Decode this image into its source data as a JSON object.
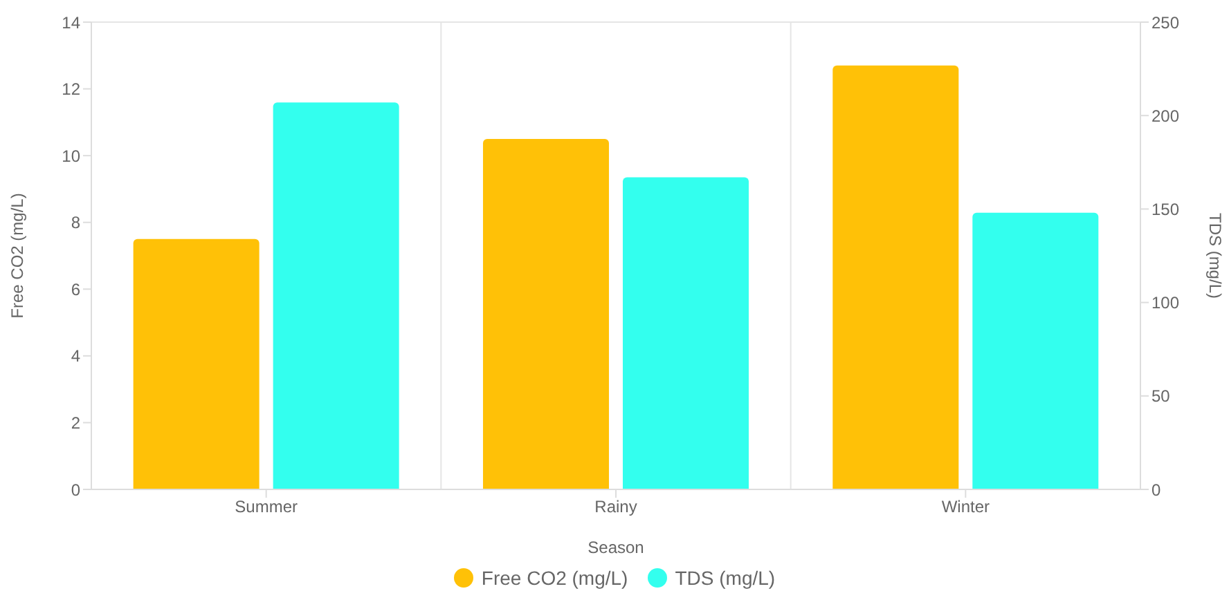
{
  "chart_data": {
    "type": "bar",
    "xlabel": "Season",
    "ylabel": "Free CO2 (mg/L)",
    "y2label": "TDS (mg/L)",
    "categories": [
      "Summer",
      "Rainy",
      "Winter"
    ],
    "series": [
      {
        "name": "Free CO2 (mg/L)",
        "color": "#ffc107",
        "values": [
          7.5,
          10.5,
          12.7
        ]
      },
      {
        "name": "TDS (mg/L)",
        "color": "#33ffee",
        "values": [
          207,
          167,
          148
        ],
        "axis": "y2"
      }
    ],
    "ylim": [
      0,
      14
    ],
    "yticks": [
      0,
      2,
      4,
      6,
      8,
      10,
      12,
      14
    ],
    "y2lim": [
      0,
      250
    ],
    "y2ticks": [
      0,
      50,
      100,
      150,
      200,
      250
    ],
    "grid": true,
    "legend": "bottom"
  }
}
